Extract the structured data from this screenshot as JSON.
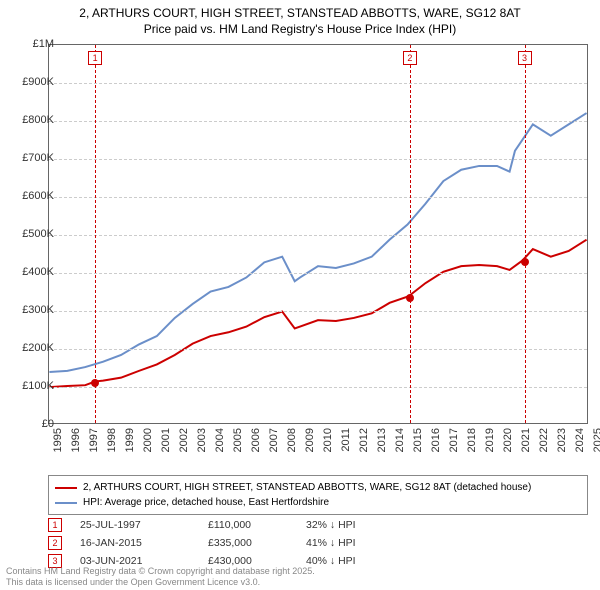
{
  "title": {
    "line1": "2, ARTHURS COURT, HIGH STREET, STANSTEAD ABBOTTS, WARE, SG12 8AT",
    "line2": "Price paid vs. HM Land Registry's House Price Index (HPI)"
  },
  "chart": {
    "type": "line",
    "background_color": "#ffffff",
    "grid_color": "#cccccc",
    "axis_color": "#666666",
    "font_family": "Arial",
    "label_fontsize": 11,
    "title_fontsize": 12,
    "x": {
      "min": 1995,
      "max": 2025,
      "ticks": [
        1995,
        1996,
        1997,
        1998,
        1999,
        2000,
        2001,
        2002,
        2003,
        2004,
        2005,
        2006,
        2007,
        2008,
        2009,
        2010,
        2011,
        2012,
        2013,
        2014,
        2015,
        2016,
        2017,
        2018,
        2019,
        2020,
        2021,
        2022,
        2023,
        2024,
        2025
      ]
    },
    "y": {
      "min": 0,
      "max": 1000000,
      "ticks": [
        {
          "v": 0,
          "label": "£0"
        },
        {
          "v": 100000,
          "label": "£100K"
        },
        {
          "v": 200000,
          "label": "£200K"
        },
        {
          "v": 300000,
          "label": "£300K"
        },
        {
          "v": 400000,
          "label": "£400K"
        },
        {
          "v": 500000,
          "label": "£500K"
        },
        {
          "v": 600000,
          "label": "£600K"
        },
        {
          "v": 700000,
          "label": "£700K"
        },
        {
          "v": 800000,
          "label": "£800K"
        },
        {
          "v": 900000,
          "label": "£900K"
        },
        {
          "v": 1000000,
          "label": "£1M"
        }
      ]
    },
    "series": [
      {
        "name": "price_paid",
        "label": "2, ARTHURS COURT, HIGH STREET, STANSTEAD ABBOTTS, WARE, SG12 8AT (detached house)",
        "color": "#cc0000",
        "line_width": 2,
        "points": [
          [
            1995,
            95000
          ],
          [
            1996,
            98000
          ],
          [
            1997,
            100000
          ],
          [
            1997.56,
            110000
          ],
          [
            1998,
            112000
          ],
          [
            1999,
            120000
          ],
          [
            2000,
            138000
          ],
          [
            2001,
            155000
          ],
          [
            2002,
            180000
          ],
          [
            2003,
            210000
          ],
          [
            2004,
            230000
          ],
          [
            2005,
            240000
          ],
          [
            2006,
            255000
          ],
          [
            2007,
            280000
          ],
          [
            2008,
            295000
          ],
          [
            2008.7,
            250000
          ],
          [
            2009,
            255000
          ],
          [
            2010,
            272000
          ],
          [
            2011,
            270000
          ],
          [
            2012,
            278000
          ],
          [
            2013,
            290000
          ],
          [
            2014,
            318000
          ],
          [
            2015.05,
            335000
          ],
          [
            2016,
            370000
          ],
          [
            2017,
            400000
          ],
          [
            2018,
            415000
          ],
          [
            2019,
            418000
          ],
          [
            2020,
            415000
          ],
          [
            2020.7,
            405000
          ],
          [
            2021.42,
            430000
          ],
          [
            2022,
            460000
          ],
          [
            2023,
            440000
          ],
          [
            2024,
            455000
          ],
          [
            2025,
            485000
          ]
        ]
      },
      {
        "name": "hpi",
        "label": "HPI: Average price, detached house, East Hertfordshire",
        "color": "#6b8fc9",
        "line_width": 2,
        "points": [
          [
            1995,
            135000
          ],
          [
            1996,
            138000
          ],
          [
            1997,
            148000
          ],
          [
            1998,
            162000
          ],
          [
            1999,
            180000
          ],
          [
            2000,
            208000
          ],
          [
            2001,
            230000
          ],
          [
            2002,
            278000
          ],
          [
            2003,
            315000
          ],
          [
            2004,
            348000
          ],
          [
            2005,
            360000
          ],
          [
            2006,
            385000
          ],
          [
            2007,
            425000
          ],
          [
            2008,
            440000
          ],
          [
            2008.7,
            375000
          ],
          [
            2009,
            385000
          ],
          [
            2010,
            415000
          ],
          [
            2011,
            410000
          ],
          [
            2012,
            422000
          ],
          [
            2013,
            440000
          ],
          [
            2014,
            485000
          ],
          [
            2015,
            525000
          ],
          [
            2016,
            580000
          ],
          [
            2017,
            640000
          ],
          [
            2018,
            670000
          ],
          [
            2019,
            680000
          ],
          [
            2020,
            680000
          ],
          [
            2020.7,
            665000
          ],
          [
            2021,
            720000
          ],
          [
            2022,
            790000
          ],
          [
            2023,
            760000
          ],
          [
            2024,
            790000
          ],
          [
            2025,
            820000
          ]
        ]
      }
    ],
    "markers": [
      {
        "n": "1",
        "x": 1997.56,
        "y": 110000,
        "date": "25-JUL-1997",
        "price": "£110,000",
        "diff": "32% ↓ HPI"
      },
      {
        "n": "2",
        "x": 2015.05,
        "y": 335000,
        "date": "16-JAN-2015",
        "price": "£335,000",
        "diff": "41% ↓ HPI"
      },
      {
        "n": "3",
        "x": 2021.42,
        "y": 430000,
        "date": "03-JUN-2021",
        "price": "£430,000",
        "diff": "40% ↓ HPI"
      }
    ],
    "marker_line_color": "#cc0000",
    "marker_dot_color": "#cc0000"
  },
  "footer": {
    "line1": "Contains HM Land Registry data © Crown copyright and database right 2025.",
    "line2": "This data is licensed under the Open Government Licence v3.0."
  }
}
